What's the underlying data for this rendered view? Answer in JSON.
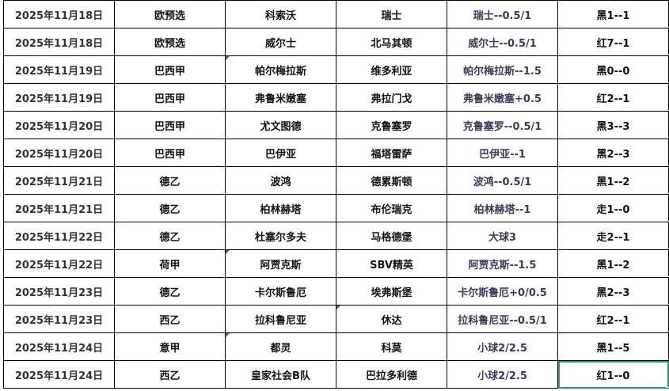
{
  "colors": {
    "selection": "#1f9a6a",
    "comment_marker": "#1a8a1a"
  },
  "rows": [
    {
      "date": "2025年11月18日",
      "league": "欧预选",
      "home": "科索沃",
      "away": "瑞士",
      "handicap": "瑞士--0.5/1",
      "result": "黑1--1"
    },
    {
      "date": "2025年11月18日",
      "league": "欧预选",
      "home": "威尔士",
      "away": "北马其顿",
      "handicap": "威尔士--0.5/1",
      "result": "红7--1"
    },
    {
      "date": "2025年11月19日",
      "league": "巴西甲",
      "home": "帕尔梅拉斯",
      "away": "维多利亚",
      "handicap": "帕尔梅拉斯--1.5",
      "result": "黑0--0",
      "marker": "home"
    },
    {
      "date": "2025年11月19日",
      "league": "巴西甲",
      "home": "弗鲁米嫩塞",
      "away": "弗拉门戈",
      "handicap": "弗鲁米嫩塞+0.5",
      "result": "红2--1"
    },
    {
      "date": "2025年11月20日",
      "league": "巴西甲",
      "home": "尤文图德",
      "away": "克鲁塞罗",
      "handicap": "克鲁塞罗--0.5/1",
      "result": "黑3--3"
    },
    {
      "date": "2025年11月20日",
      "league": "巴西甲",
      "home": "巴伊亚",
      "away": "福塔雷萨",
      "handicap": "巴伊亚--1",
      "result": "黑2--3"
    },
    {
      "date": "2025年11月21日",
      "league": "德乙",
      "home": "波鸿",
      "away": "德累斯顿",
      "handicap": "波鸿--0.5/1",
      "result": "黑1--2"
    },
    {
      "date": "2025年11月21日",
      "league": "德乙",
      "home": "柏林赫塔",
      "away": "布伦瑞克",
      "handicap": "柏林赫塔--1",
      "result": "走1--0"
    },
    {
      "date": "2025年11月22日",
      "league": "德乙",
      "home": "杜塞尔多夫",
      "away": "马格德堡",
      "handicap": "大球3",
      "result": "走2--1"
    },
    {
      "date": "2025年11月22日",
      "league": "荷甲",
      "home": "阿贾克斯",
      "away": "SBV精英",
      "handicap": "阿贾克斯--1.5",
      "result": "黑1--2",
      "marker": "home"
    },
    {
      "date": "2025年11月23日",
      "league": "德乙",
      "home": "卡尔斯鲁厄",
      "away": "埃弗斯堡",
      "handicap": "卡尔斯鲁厄+0/0.5",
      "result": "黑2--3"
    },
    {
      "date": "2025年11月23日",
      "league": "西乙",
      "home": "拉科鲁尼亚",
      "away": "休达",
      "handicap": "拉科鲁尼亚--0.5/1",
      "result": "红2--1",
      "marker": "away"
    },
    {
      "date": "2025年11月24日",
      "league": "意甲",
      "home": "都灵",
      "away": "科莫",
      "handicap": "小球2/2.5",
      "result": "黑1--5",
      "marker": "home"
    },
    {
      "date": "2025年11月24日",
      "league": "西乙",
      "home": "皇家社会B队",
      "away": "巴拉多利德",
      "handicap": "小球2/2.5",
      "result": "红1--0",
      "selected": "result"
    }
  ]
}
